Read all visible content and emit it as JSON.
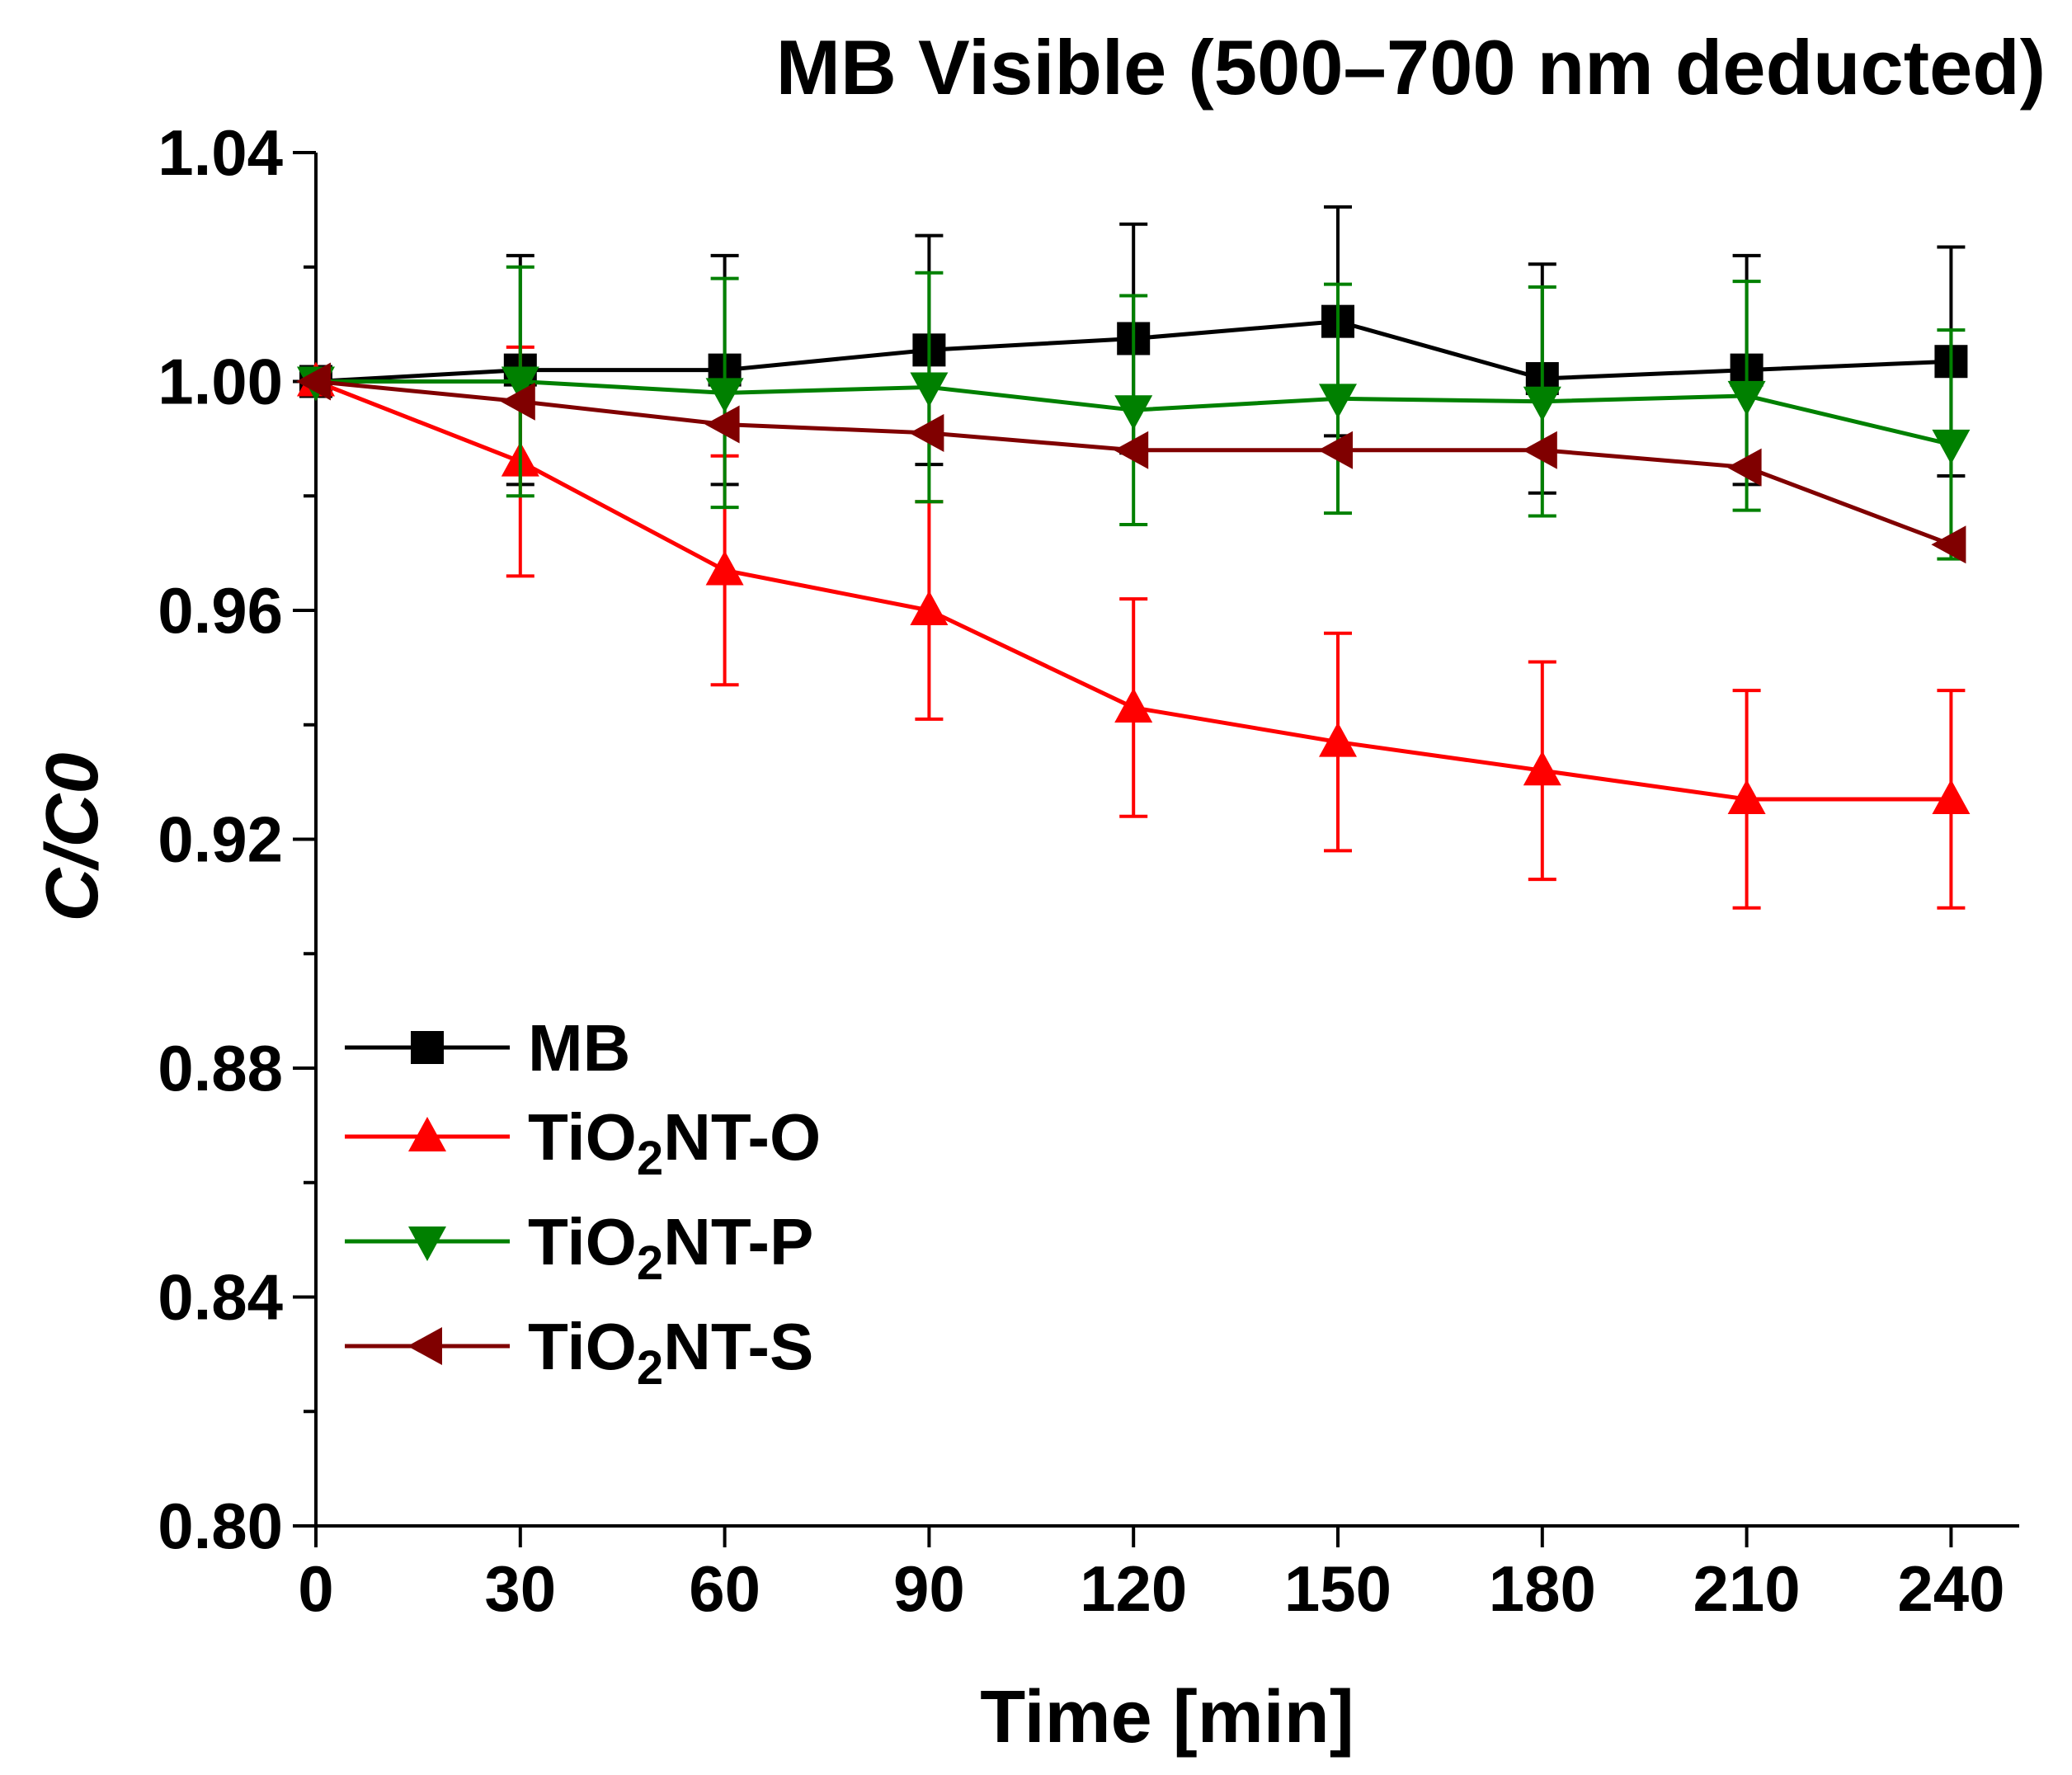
{
  "chart_data": {
    "type": "line",
    "title": "MB Visible (500–700 nm deducted)",
    "xlabel": "Time [min]",
    "ylabel_main": "C/C",
    "ylabel_sub": "0",
    "xlim": [
      0,
      250
    ],
    "ylim": [
      0.8,
      1.04
    ],
    "x": [
      0,
      30,
      60,
      90,
      120,
      150,
      180,
      210,
      240
    ],
    "xticks": [
      "0",
      "30",
      "60",
      "90",
      "120",
      "150",
      "180",
      "210",
      "240"
    ],
    "yticks": [
      "0.80",
      "0.84",
      "0.88",
      "0.92",
      "0.96",
      "1.00",
      "1.04"
    ],
    "ytick_values": [
      0.8,
      0.84,
      0.88,
      0.92,
      0.96,
      1.0,
      1.04
    ],
    "grid": false,
    "legend_position": "lower-left",
    "series": [
      {
        "name": "MB",
        "label_parts": [
          "MB"
        ],
        "color": "#000000",
        "marker": "square",
        "values": [
          1.0,
          1.002,
          1.002,
          1.0055,
          1.0075,
          1.0105,
          1.0005,
          1.002,
          1.0035
        ],
        "errors": [
          0,
          0.02,
          0.02,
          0.02,
          0.02,
          0.02,
          0.02,
          0.02,
          0.02
        ]
      },
      {
        "name": "TiO2NT-O",
        "label_parts": [
          "TiO",
          "2",
          "NT-O"
        ],
        "color": "#ff0000",
        "marker": "triangle-up",
        "values": [
          1.0,
          0.986,
          0.967,
          0.96,
          0.943,
          0.937,
          0.932,
          0.927,
          0.927
        ],
        "errors": [
          0,
          0.02,
          0.02,
          0.019,
          0.019,
          0.019,
          0.019,
          0.019,
          0.019
        ]
      },
      {
        "name": "TiO2NT-P",
        "label_parts": [
          "TiO",
          "2",
          "NT-P"
        ],
        "color": "#008000",
        "marker": "triangle-down",
        "values": [
          1.0,
          1.0,
          0.998,
          0.999,
          0.995,
          0.997,
          0.9965,
          0.9975,
          0.989
        ],
        "errors": [
          0,
          0.02,
          0.02,
          0.02,
          0.02,
          0.02,
          0.02,
          0.02,
          0.02
        ]
      },
      {
        "name": "TiO2NT-S",
        "label_parts": [
          "TiO",
          "2",
          "NT-S"
        ],
        "color": "#800000",
        "marker": "triangle-left",
        "values": [
          1.0,
          0.9965,
          0.9925,
          0.991,
          0.988,
          0.988,
          0.988,
          0.985,
          0.9715
        ],
        "errors": [
          0,
          0,
          0,
          0,
          0,
          0,
          0,
          0,
          0
        ]
      }
    ]
  }
}
